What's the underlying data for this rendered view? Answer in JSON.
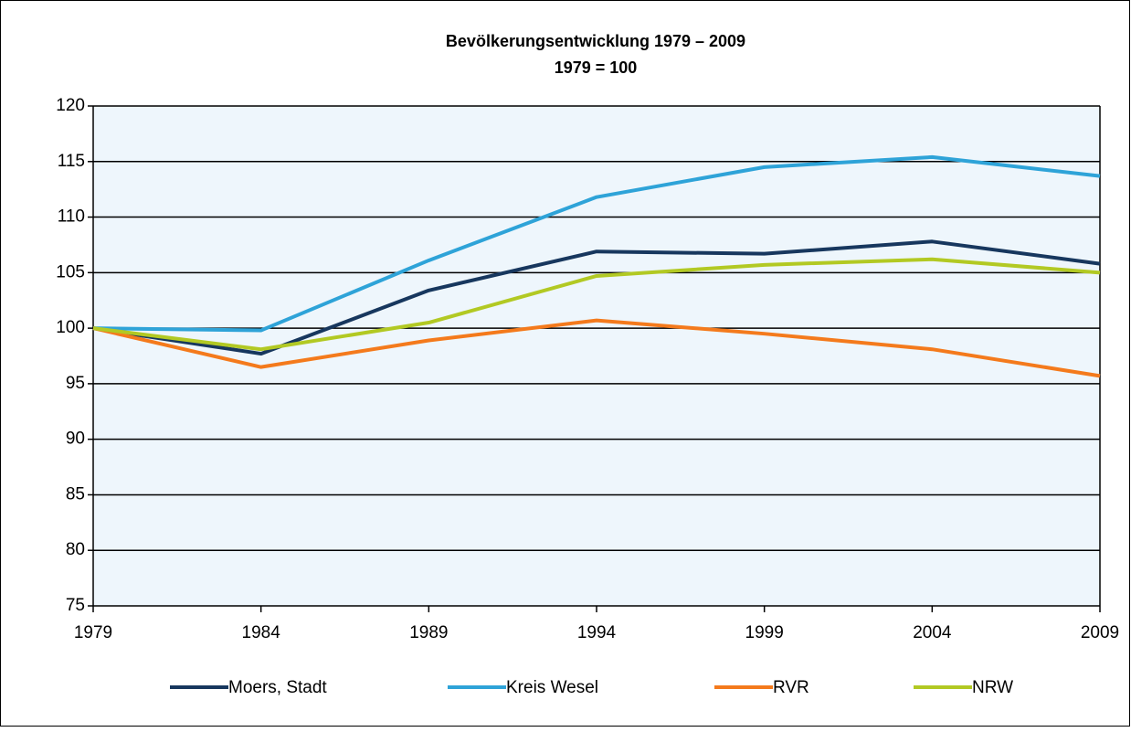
{
  "chart_data": {
    "type": "line",
    "title": "Bevölkerungsentwicklung 1979 – 2009",
    "subtitle": "1979 = 100",
    "x": [
      1979,
      1984,
      1989,
      1994,
      1999,
      2004,
      2009
    ],
    "xlim": [
      1979,
      2009
    ],
    "xticks": [
      1979,
      1984,
      1989,
      1994,
      1999,
      2004,
      2009
    ],
    "ylim": [
      75,
      120
    ],
    "yticks": [
      75,
      80,
      85,
      90,
      95,
      100,
      105,
      110,
      115,
      120
    ],
    "grid": true,
    "legend": "bottom",
    "series": [
      {
        "name": "Moers, Stadt",
        "color": "#17375e",
        "values": [
          100,
          97.7,
          103.4,
          106.9,
          106.7,
          107.8,
          105.8
        ]
      },
      {
        "name": "Kreis Wesel",
        "color": "#2ea3d8",
        "values": [
          100,
          99.8,
          106.1,
          111.8,
          114.5,
          115.4,
          113.7
        ]
      },
      {
        "name": "RVR",
        "color": "#f47a1c",
        "values": [
          100,
          96.5,
          98.9,
          100.7,
          99.5,
          98.1,
          95.7
        ]
      },
      {
        "name": "NRW",
        "color": "#b2c923",
        "values": [
          100,
          98.1,
          100.5,
          104.7,
          105.7,
          106.2,
          105.0
        ]
      }
    ]
  }
}
